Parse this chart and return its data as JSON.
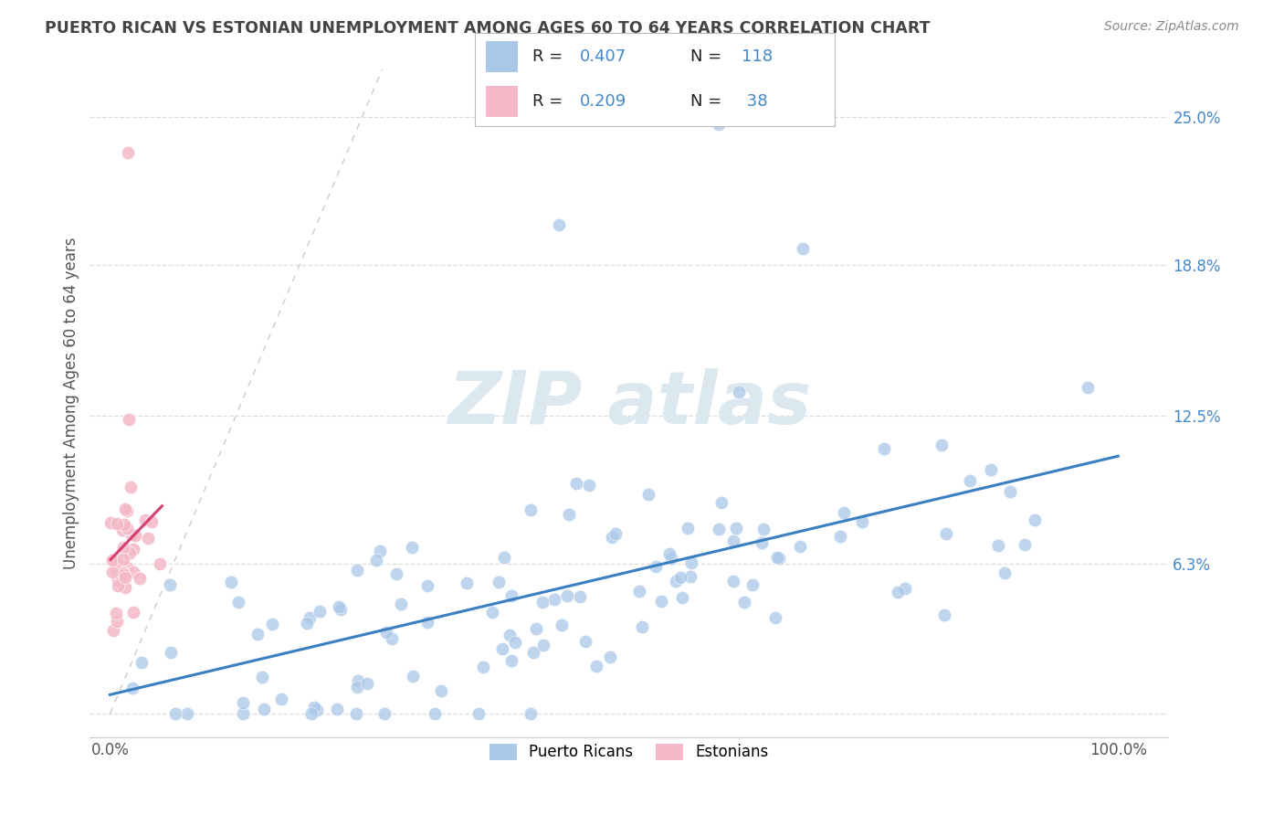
{
  "title": "PUERTO RICAN VS ESTONIAN UNEMPLOYMENT AMONG AGES 60 TO 64 YEARS CORRELATION CHART",
  "source": "Source: ZipAtlas.com",
  "ylabel": "Unemployment Among Ages 60 to 64 years",
  "x_ticks": [
    0.0,
    1.0
  ],
  "x_tick_labels": [
    "0.0%",
    "100.0%"
  ],
  "y_ticks": [
    0.0,
    0.063,
    0.125,
    0.188,
    0.25
  ],
  "y_tick_labels": [
    "",
    "6.3%",
    "12.5%",
    "18.8%",
    "25.0%"
  ],
  "xlim": [
    -0.02,
    1.05
  ],
  "ylim": [
    -0.01,
    0.27
  ],
  "legend_entries": [
    {
      "label": "Puerto Ricans",
      "color": "#aac8e8",
      "R": "0.407",
      "N": "118"
    },
    {
      "label": "Estonians",
      "color": "#f4b8c8",
      "R": "0.209",
      "N": "38"
    }
  ],
  "blue_scatter_color": "#aac8e8",
  "pink_scatter_color": "#f4b8c8",
  "blue_line_color": "#3a7fc1",
  "pink_line_color": "#d44070",
  "ref_line_color": "#cccccc",
  "background_color": "#ffffff",
  "grid_color": "#dddddd",
  "title_color": "#444444",
  "source_color": "#888888",
  "watermark_color": "#dce8f0",
  "blue_R": 0.407,
  "blue_N": 118,
  "pink_R": 0.209,
  "pink_N": 38,
  "legend_R_color": "#222222",
  "legend_N_color": "#4488cc",
  "ytick_color": "#4488cc"
}
